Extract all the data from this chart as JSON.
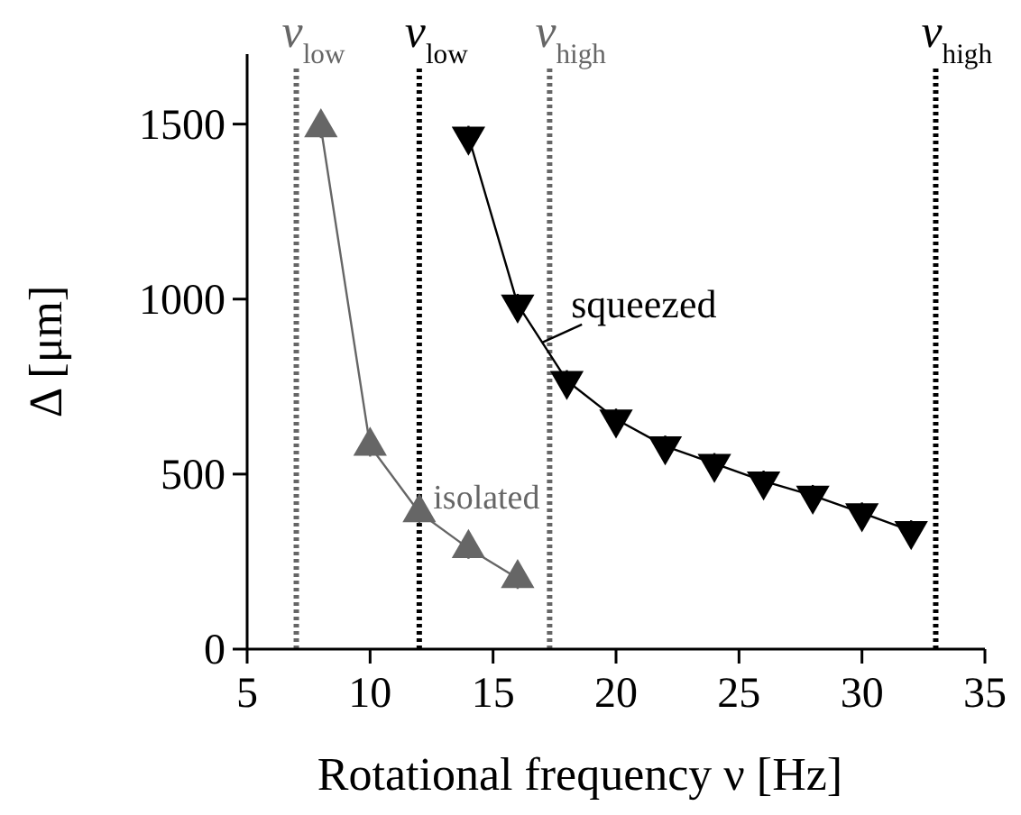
{
  "chart_data": {
    "type": "line",
    "xlabel": "Rotational frequency ν [Hz]",
    "ylabel": "Δ [μm]",
    "xlim": [
      5,
      35
    ],
    "xticks": [
      5,
      10,
      15,
      20,
      25,
      30,
      35
    ],
    "ylim": [
      0,
      1700
    ],
    "yticks": [
      0,
      500,
      1000,
      1500
    ],
    "marker": "triangle",
    "grid": false,
    "legend": false,
    "series": [
      {
        "name": "isolated",
        "color": "#666666",
        "x": [
          8,
          10,
          12,
          14,
          16
        ],
        "values": [
          1490,
          580,
          390,
          288,
          202
        ],
        "errors": [
          30,
          30,
          30,
          30,
          30
        ]
      },
      {
        "name": "squeezed",
        "color": "#000000",
        "x": [
          14,
          16,
          18,
          20,
          22,
          24,
          26,
          28,
          30,
          32
        ],
        "values": [
          1465,
          985,
          767,
          657,
          580,
          530,
          480,
          439,
          389,
          338
        ],
        "errors": [
          30,
          30,
          30,
          30,
          30,
          30,
          30,
          30,
          30,
          30
        ]
      }
    ],
    "ref_lines": [
      {
        "axis": "x",
        "value": 7,
        "label": "ν$_{low}$",
        "color": "#666666",
        "line_style": "dotted"
      },
      {
        "axis": "x",
        "value": 12,
        "label": "ν$_{low}$",
        "color": "#000000",
        "line_style": "dotted"
      },
      {
        "axis": "x",
        "value": 17.3,
        "label": "ν$_{high}$",
        "color": "#666666",
        "line_style": "dotted"
      },
      {
        "axis": "x",
        "value": 33,
        "label": "ν$_{high}$",
        "color": "#000000",
        "line_style": "dotted"
      }
    ]
  }
}
